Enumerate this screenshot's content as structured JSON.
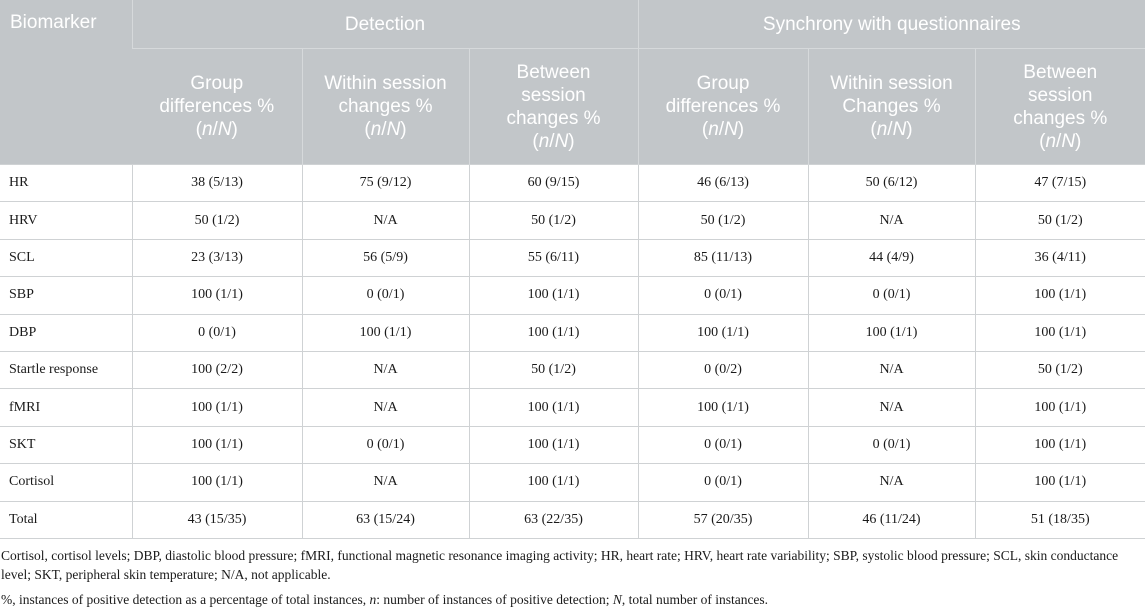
{
  "header": {
    "biomarker": "Biomarker",
    "group1": "Detection",
    "group2": "Synchrony with questionnaires",
    "sub": [
      {
        "lines": [
          "Group",
          "differences %"
        ]
      },
      {
        "lines": [
          "Within session",
          "changes %"
        ]
      },
      {
        "lines": [
          "Between",
          "session",
          "changes %"
        ]
      },
      {
        "lines": [
          "Group",
          "differences %"
        ]
      },
      {
        "lines": [
          "Within session",
          "Changes %"
        ]
      },
      {
        "lines": [
          "Between",
          "session",
          "changes %"
        ]
      }
    ],
    "nn_open": "(",
    "nn_n": "n",
    "nn_slash": "/",
    "nn_N": "N",
    "nn_close": ")"
  },
  "rows": [
    {
      "name": "HR",
      "values": [
        "38 (5/13)",
        "75 (9/12)",
        "60 (9/15)",
        "46 (6/13)",
        "50 (6/12)",
        "47 (7/15)"
      ]
    },
    {
      "name": "HRV",
      "values": [
        "50 (1/2)",
        "N/A",
        "50 (1/2)",
        "50 (1/2)",
        "N/A",
        "50 (1/2)"
      ]
    },
    {
      "name": "SCL",
      "values": [
        "23 (3/13)",
        "56 (5/9)",
        "55 (6/11)",
        "85 (11/13)",
        "44 (4/9)",
        "36 (4/11)"
      ]
    },
    {
      "name": "SBP",
      "values": [
        "100 (1/1)",
        "0 (0/1)",
        "100 (1/1)",
        "0 (0/1)",
        "0 (0/1)",
        "100 (1/1)"
      ]
    },
    {
      "name": "DBP",
      "values": [
        "0 (0/1)",
        "100 (1/1)",
        "100 (1/1)",
        "100 (1/1)",
        "100 (1/1)",
        "100 (1/1)"
      ]
    },
    {
      "name": "Startle response",
      "values": [
        "100 (2/2)",
        "N/A",
        "50 (1/2)",
        "0 (0/2)",
        "N/A",
        "50 (1/2)"
      ]
    },
    {
      "name": "fMRI",
      "values": [
        "100 (1/1)",
        "N/A",
        "100 (1/1)",
        "100 (1/1)",
        "N/A",
        "100 (1/1)"
      ]
    },
    {
      "name": "SKT",
      "values": [
        "100 (1/1)",
        "0 (0/1)",
        "100 (1/1)",
        "0 (0/1)",
        "0 (0/1)",
        "100 (1/1)"
      ]
    },
    {
      "name": "Cortisol",
      "values": [
        "100 (1/1)",
        "N/A",
        "100 (1/1)",
        "0 (0/1)",
        "N/A",
        "100 (1/1)"
      ]
    },
    {
      "name": "Total",
      "values": [
        "43 (15/35)",
        "63 (15/24)",
        "63 (22/35)",
        "57 (20/35)",
        "46 (11/24)",
        "51 (18/35)"
      ]
    }
  ],
  "footnotes": {
    "abbrev": "Cortisol, cortisol levels; DBP, diastolic blood pressure; fMRI, functional magnetic resonance imaging activity; HR, heart rate; HRV, heart rate variability; SBP, systolic blood pressure; SCL, skin conductance level; SKT, peripheral skin temperature; N/A, not applicable.",
    "pct_a": "%, instances of positive detection as a percentage of total instances, ",
    "pct_n": "n",
    "pct_b": ": number of instances of positive detection; ",
    "pct_N": "N",
    "pct_c": ", total number of instances."
  }
}
